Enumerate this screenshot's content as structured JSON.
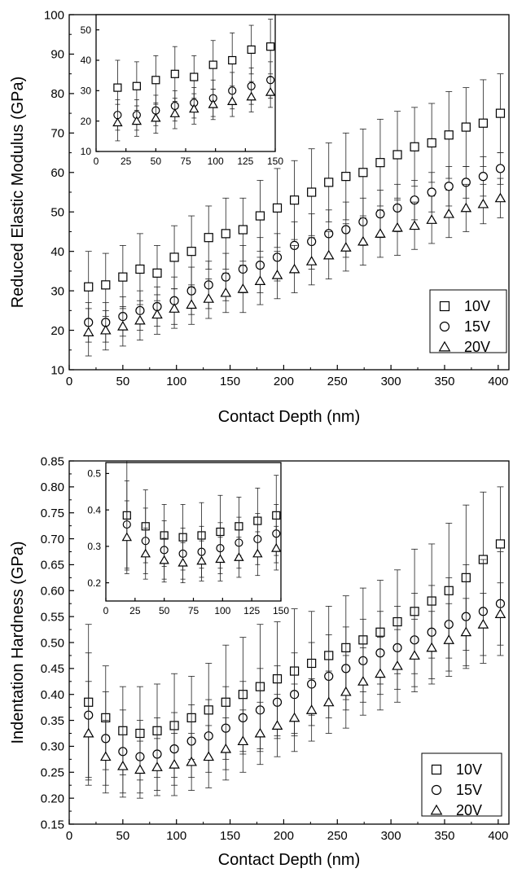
{
  "chart_data": [
    {
      "type": "scatter",
      "xlabel": "Contact Depth (nm)",
      "ylabel": "Reduced Elastic Modulus (GPa)",
      "xlim": [
        0,
        410
      ],
      "ylim": [
        10,
        100
      ],
      "xticks": [
        0,
        50,
        100,
        150,
        200,
        250,
        300,
        350,
        400
      ],
      "yticks": [
        10,
        20,
        30,
        40,
        50,
        60,
        70,
        80,
        90,
        100
      ],
      "error_bars": true,
      "legend_position": "bottom-right",
      "x": [
        18,
        34,
        50,
        66,
        82,
        98,
        114,
        130,
        146,
        162,
        178,
        194,
        210,
        226,
        242,
        258,
        274,
        290,
        306,
        322,
        338,
        354,
        370,
        386,
        402
      ],
      "series": [
        {
          "name": "10V",
          "marker": "square",
          "values": [
            31,
            31.5,
            33.5,
            35.5,
            34.5,
            38.5,
            40,
            43.5,
            44.5,
            45.5,
            49,
            51,
            53,
            55,
            57.5,
            59,
            60,
            62.5,
            64.5,
            66.5,
            67.5,
            69.5,
            71.5,
            72.5,
            75
          ],
          "errors": [
            9,
            8,
            8,
            9,
            7,
            8,
            9,
            8,
            9,
            8,
            9,
            10,
            10,
            11,
            10,
            11,
            11,
            11,
            11,
            10,
            10,
            11,
            10,
            11,
            10
          ]
        },
        {
          "name": "15V",
          "marker": "circle",
          "values": [
            22,
            22,
            23.5,
            25,
            26,
            27.5,
            30,
            31.5,
            33.5,
            35.5,
            36.5,
            38.5,
            41.5,
            42.5,
            44.5,
            45.5,
            47.5,
            49.5,
            51,
            53,
            55,
            56.5,
            57.5,
            59,
            61
          ],
          "errors": [
            5,
            5,
            5,
            5,
            5,
            6,
            6,
            6,
            6,
            6,
            7,
            6,
            6,
            7,
            6,
            7,
            6,
            6,
            6,
            5,
            5,
            5,
            4,
            5,
            4
          ]
        },
        {
          "name": "20V",
          "marker": "triangle",
          "values": [
            19.5,
            20,
            21,
            22.5,
            24,
            25.5,
            26.5,
            28,
            29.5,
            30.5,
            32.5,
            34,
            35.5,
            37.5,
            39,
            41,
            42.5,
            44.5,
            46,
            46.5,
            48,
            49.5,
            51,
            52,
            53.5
          ],
          "errors": [
            6,
            5,
            5,
            5,
            5,
            5,
            5,
            5,
            5,
            6,
            6,
            6,
            6,
            6,
            6,
            6,
            6,
            6,
            7,
            6,
            6,
            6,
            6,
            5,
            5
          ]
        }
      ],
      "inset": {
        "xlim": [
          0,
          150
        ],
        "ylim": [
          10,
          55
        ],
        "xticks": [
          0,
          25,
          50,
          75,
          100,
          125,
          150
        ],
        "yticks": [
          10,
          20,
          30,
          40,
          50
        ],
        "x": [
          18,
          34,
          50,
          66,
          82,
          98,
          114,
          130,
          146
        ],
        "series": [
          {
            "name": "10V",
            "marker": "square",
            "values": [
              31,
              31.5,
              33.5,
              35.5,
              34.5,
              38.5,
              40,
              43.5,
              44.5
            ],
            "errors": [
              9,
              8,
              8,
              9,
              7,
              8,
              9,
              8,
              9
            ]
          },
          {
            "name": "15V",
            "marker": "circle",
            "values": [
              22,
              22,
              23.5,
              25,
              26,
              27.5,
              30,
              31.5,
              33.5
            ],
            "errors": [
              5,
              5,
              5,
              5,
              5,
              6,
              6,
              6,
              6
            ]
          },
          {
            "name": "20V",
            "marker": "triangle",
            "values": [
              19.5,
              20,
              21,
              22.5,
              24,
              25.5,
              26.5,
              28,
              29.5
            ],
            "errors": [
              6,
              5,
              5,
              5,
              5,
              5,
              5,
              5,
              5
            ]
          }
        ]
      }
    },
    {
      "type": "scatter",
      "xlabel": "Contact Depth (nm)",
      "ylabel": "Indentation Hardness (GPa)",
      "xlim": [
        0,
        410
      ],
      "ylim": [
        0.15,
        0.85
      ],
      "xticks": [
        0,
        50,
        100,
        150,
        200,
        250,
        300,
        350,
        400
      ],
      "yticks": [
        0.15,
        0.2,
        0.25,
        0.3,
        0.35,
        0.4,
        0.45,
        0.5,
        0.55,
        0.6,
        0.65,
        0.7,
        0.75,
        0.8,
        0.85
      ],
      "error_bars": true,
      "legend_position": "bottom-right",
      "x": [
        18,
        34,
        50,
        66,
        82,
        98,
        114,
        130,
        146,
        162,
        178,
        194,
        210,
        226,
        242,
        258,
        274,
        290,
        306,
        322,
        338,
        354,
        370,
        386,
        402
      ],
      "series": [
        {
          "name": "10V",
          "marker": "square",
          "values": [
            0.385,
            0.355,
            0.33,
            0.325,
            0.33,
            0.34,
            0.355,
            0.37,
            0.385,
            0.4,
            0.415,
            0.43,
            0.445,
            0.46,
            0.475,
            0.49,
            0.505,
            0.52,
            0.54,
            0.56,
            0.58,
            0.6,
            0.625,
            0.66,
            0.69
          ],
          "errors": [
            0.15,
            0.1,
            0.085,
            0.09,
            0.09,
            0.1,
            0.08,
            0.09,
            0.11,
            0.11,
            0.12,
            0.11,
            0.12,
            0.1,
            0.095,
            0.1,
            0.1,
            0.1,
            0.1,
            0.12,
            0.11,
            0.13,
            0.14,
            0.13,
            0.11
          ]
        },
        {
          "name": "15V",
          "marker": "circle",
          "values": [
            0.36,
            0.315,
            0.29,
            0.28,
            0.285,
            0.295,
            0.31,
            0.32,
            0.335,
            0.355,
            0.37,
            0.385,
            0.4,
            0.42,
            0.435,
            0.45,
            0.465,
            0.48,
            0.49,
            0.505,
            0.52,
            0.535,
            0.55,
            0.56,
            0.575
          ],
          "errors": [
            0.12,
            0.09,
            0.08,
            0.07,
            0.07,
            0.07,
            0.07,
            0.07,
            0.08,
            0.07,
            0.08,
            0.07,
            0.08,
            0.08,
            0.08,
            0.08,
            0.08,
            0.08,
            0.08,
            0.09,
            0.09,
            0.09,
            0.1,
            0.1,
            0.1
          ]
        },
        {
          "name": "20V",
          "marker": "triangle",
          "values": [
            0.325,
            0.28,
            0.262,
            0.255,
            0.26,
            0.265,
            0.27,
            0.28,
            0.295,
            0.31,
            0.325,
            0.34,
            0.355,
            0.37,
            0.385,
            0.405,
            0.425,
            0.44,
            0.455,
            0.475,
            0.49,
            0.505,
            0.52,
            0.535,
            0.555
          ],
          "errors": [
            0.1,
            0.07,
            0.06,
            0.055,
            0.055,
            0.06,
            0.055,
            0.06,
            0.06,
            0.06,
            0.06,
            0.06,
            0.065,
            0.06,
            0.06,
            0.07,
            0.065,
            0.07,
            0.07,
            0.07,
            0.07,
            0.07,
            0.065,
            0.06,
            0.06
          ]
        }
      ],
      "inset": {
        "xlim": [
          0,
          150
        ],
        "ylim": [
          0.15,
          0.53
        ],
        "xticks": [
          0,
          25,
          50,
          75,
          100,
          125,
          150
        ],
        "yticks": [
          0.2,
          0.3,
          0.4,
          0.5
        ],
        "x": [
          18,
          34,
          50,
          66,
          82,
          98,
          114,
          130,
          146
        ],
        "series": [
          {
            "name": "10V",
            "marker": "square",
            "values": [
              0.385,
              0.355,
              0.33,
              0.325,
              0.33,
              0.34,
              0.355,
              0.37,
              0.385
            ],
            "errors": [
              0.15,
              0.1,
              0.085,
              0.09,
              0.09,
              0.1,
              0.08,
              0.09,
              0.11
            ]
          },
          {
            "name": "15V",
            "marker": "circle",
            "values": [
              0.36,
              0.315,
              0.29,
              0.28,
              0.285,
              0.295,
              0.31,
              0.32,
              0.335
            ],
            "errors": [
              0.12,
              0.09,
              0.08,
              0.07,
              0.07,
              0.07,
              0.07,
              0.07,
              0.08
            ]
          },
          {
            "name": "20V",
            "marker": "triangle",
            "values": [
              0.325,
              0.28,
              0.262,
              0.255,
              0.26,
              0.265,
              0.27,
              0.28,
              0.295
            ],
            "errors": [
              0.1,
              0.07,
              0.06,
              0.055,
              0.055,
              0.06,
              0.055,
              0.06,
              0.06
            ]
          }
        ]
      }
    }
  ]
}
